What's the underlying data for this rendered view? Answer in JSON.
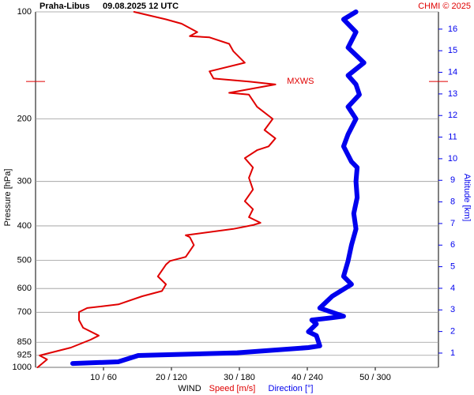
{
  "chart_data": {
    "type": "line",
    "title": "Praha-Libus",
    "subtitle": "09.08.2025 12 UTC",
    "credit": "CHMI © 2025",
    "ylabel": "Pressure [hPa]",
    "y2label": "Altitude [km]",
    "xlabel": "WIND",
    "ylog": true,
    "grid": true,
    "ylim": [
      1000,
      100
    ],
    "yticks": [
      100,
      200,
      300,
      400,
      500,
      600,
      700,
      850,
      925,
      1000
    ],
    "y2lim": [
      0.34,
      16.8
    ],
    "y2ticks": [
      1,
      2,
      3,
      4,
      5,
      6,
      7,
      8,
      9,
      10,
      11,
      12,
      13,
      14,
      15,
      16
    ],
    "xlim": [
      0,
      59.3
    ],
    "x2lim": [
      0,
      355.8
    ],
    "xticks": [
      {
        "value": 10,
        "label": "10 / 60"
      },
      {
        "value": 20,
        "label": "20 / 120"
      },
      {
        "value": 30,
        "label": "30 / 180"
      },
      {
        "value": 40,
        "label": "40 / 240"
      },
      {
        "value": 50,
        "label": "50 / 300"
      }
    ],
    "annotations": [
      {
        "text": "MXWS",
        "x": 37,
        "y": 157
      }
    ],
    "series": [
      {
        "name": "Speed [m/s]",
        "color": "#e00000",
        "axis": "x",
        "pressure": [
          1000,
          950,
          926,
          880,
          836,
          814,
          774,
          736,
          699,
          681,
          665,
          631,
          610,
          584,
          555,
          514,
          502,
          489,
          453,
          430,
          425,
          408,
          398,
          392,
          378,
          359,
          341,
          316,
          293,
          274,
          258,
          245,
          239,
          227,
          215,
          200,
          185,
          171,
          169,
          160,
          157,
          154,
          147,
          139,
          129,
          123,
          118,
          117,
          114,
          108,
          105,
          100
        ],
        "values": [
          0.3,
          1.7,
          0.6,
          5.2,
          8.1,
          9.3,
          7.0,
          6.4,
          6.4,
          7.6,
          12.2,
          15.7,
          18.6,
          19.2,
          18.0,
          19.2,
          19.8,
          22.1,
          23.3,
          22.7,
          22.1,
          29.1,
          32.0,
          33.1,
          31.4,
          32.0,
          30.8,
          32.0,
          31.4,
          32.0,
          30.8,
          32.6,
          34.3,
          35.3,
          33.7,
          34.9,
          32.6,
          31.4,
          28.5,
          35.3,
          31.4,
          26.2,
          25.6,
          30.8,
          29.1,
          28.5,
          25.6,
          22.7,
          23.8,
          21.5,
          19.2,
          14.5
        ]
      },
      {
        "name": "Direction [°]",
        "color": "#0000ee",
        "axis": "x2",
        "pressure": [
          975,
          965,
          926,
          910,
          880,
          870,
          814,
          794,
          755,
          736,
          725,
          718,
          681,
          631,
          584,
          555,
          502,
          453,
          408,
          369,
          333,
          300,
          274,
          264,
          239,
          221,
          200,
          185,
          171,
          160,
          151,
          139,
          126,
          114,
          105,
          100
        ],
        "values": [
          32.8,
          73,
          90.7,
          178,
          241,
          251,
          248,
          241,
          248,
          244,
          262,
          272,
          251,
          262,
          279,
          272,
          276,
          279,
          283,
          281,
          284,
          283,
          284,
          279,
          272,
          276,
          283,
          276,
          286,
          283,
          276,
          290,
          276,
          283,
          272,
          283
        ]
      }
    ]
  }
}
